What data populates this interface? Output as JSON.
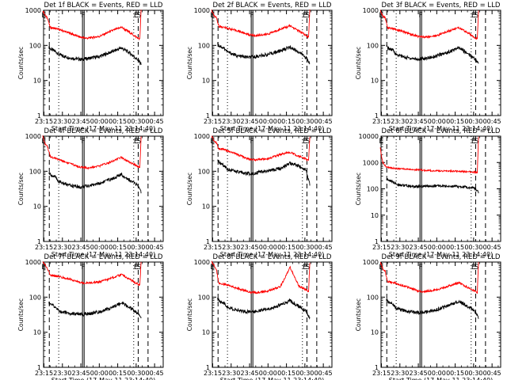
{
  "x_ticks": [
    "23:15",
    "23:30",
    "23:45",
    "00:00",
    "00:15",
    "00:30",
    "00:45"
  ],
  "y_ticks": [
    "1",
    "10",
    "100",
    "1000"
  ],
  "xlabel": "Start Time (17-May-11 23:14:40)",
  "ylabel": "Counts/sec",
  "series_colors": {
    "events": "#000000",
    "lld": "#ff0000"
  },
  "marker_labels": {
    "flare_left": "F",
    "eclipse_left": "E",
    "saa_left": "S",
    "eclipse_right": "E",
    "saa_right": "S"
  },
  "chart_data": [
    {
      "type": "line",
      "title": "Det 1f BLACK = Events, RED = LLD",
      "xlabel": "Start Time (17-May-11 23:14:40)",
      "ylabel": "Counts/sec",
      "x_range": [
        "23:14:40",
        "00:52:00"
      ],
      "ylim": [
        1,
        1000
      ],
      "y_scale": "log",
      "series": [
        {
          "color": "#000000",
          "x": [
            "23:19",
            "23:20",
            "23:25",
            "23:27",
            "23:35",
            "23:45",
            "23:50",
            "00:00",
            "00:10",
            "00:18",
            "00:25",
            "00:31",
            "00:34"
          ],
          "values": [
            90,
            80,
            65,
            55,
            45,
            40,
            42,
            48,
            65,
            85,
            60,
            40,
            30
          ]
        },
        {
          "color": "#ff0000",
          "x": [
            "23:14",
            "23:16",
            "23:18",
            "23:20",
            "23:25",
            "23:35",
            "23:45",
            "23:50",
            "00:00",
            "00:10",
            "00:18",
            "00:25",
            "00:31",
            "00:33",
            "00:34"
          ],
          "values": [
            1000,
            700,
            600,
            320,
            300,
            230,
            170,
            160,
            180,
            260,
            330,
            230,
            165,
            150,
            1000
          ]
        }
      ]
    },
    {
      "type": "line",
      "title": "Det 2f BLACK = Events, RED = LLD",
      "xlabel": "Start Time (17-May-11 23:14:40)",
      "ylabel": "Counts/sec",
      "x_range": [
        "23:14:40",
        "00:52:00"
      ],
      "ylim": [
        1,
        1000
      ],
      "y_scale": "log",
      "series": [
        {
          "color": "#000000",
          "x": [
            "23:19",
            "23:20",
            "23:25",
            "23:27",
            "23:35",
            "23:45",
            "23:50",
            "00:00",
            "00:10",
            "00:18",
            "00:25",
            "00:31",
            "00:34"
          ],
          "values": [
            110,
            100,
            80,
            65,
            50,
            45,
            48,
            55,
            70,
            90,
            65,
            45,
            30
          ]
        },
        {
          "color": "#ff0000",
          "x": [
            "23:14",
            "23:16",
            "23:18",
            "23:20",
            "23:25",
            "23:35",
            "23:45",
            "23:50",
            "00:00",
            "00:10",
            "00:18",
            "00:25",
            "00:31",
            "00:33",
            "00:34"
          ],
          "values": [
            1000,
            700,
            600,
            350,
            320,
            260,
            200,
            190,
            210,
            290,
            360,
            260,
            190,
            170,
            1000
          ]
        }
      ]
    },
    {
      "type": "line",
      "title": "Det 3f BLACK = Events, RED = LLD",
      "xlabel": "Start Time (17-May-11 23:14:40)",
      "ylabel": "Counts/sec",
      "x_range": [
        "23:14:40",
        "00:52:00"
      ],
      "ylim": [
        1,
        1000
      ],
      "y_scale": "log",
      "series": [
        {
          "color": "#000000",
          "x": [
            "23:19",
            "23:20",
            "23:25",
            "23:27",
            "23:35",
            "23:45",
            "23:50",
            "00:00",
            "00:10",
            "00:18",
            "00:25",
            "00:31",
            "00:34"
          ],
          "values": [
            95,
            85,
            70,
            55,
            45,
            40,
            42,
            50,
            65,
            85,
            60,
            42,
            30
          ]
        },
        {
          "color": "#ff0000",
          "x": [
            "23:14",
            "23:16",
            "23:18",
            "23:20",
            "23:25",
            "23:35",
            "23:45",
            "23:50",
            "00:00",
            "00:10",
            "00:18",
            "00:25",
            "00:31",
            "00:33",
            "00:34"
          ],
          "values": [
            1000,
            700,
            600,
            320,
            300,
            230,
            180,
            170,
            190,
            260,
            320,
            230,
            170,
            150,
            1000
          ]
        }
      ]
    },
    {
      "type": "line",
      "title": "Det 4f BLACK = Events, RED = LLD",
      "xlabel": "Start Time (17-May-11 23:14:40)",
      "ylabel": "Counts/sec",
      "x_range": [
        "23:14:40",
        "00:52:00"
      ],
      "ylim": [
        1,
        1000
      ],
      "y_scale": "log",
      "series": [
        {
          "color": "#000000",
          "x": [
            "23:19",
            "23:20",
            "23:25",
            "23:27",
            "23:35",
            "23:45",
            "23:50",
            "00:00",
            "00:10",
            "00:18",
            "00:25",
            "00:31",
            "00:34"
          ],
          "values": [
            90,
            80,
            65,
            50,
            40,
            35,
            38,
            45,
            60,
            80,
            55,
            40,
            25
          ]
        },
        {
          "color": "#ff0000",
          "x": [
            "23:14",
            "23:16",
            "23:18",
            "23:20",
            "23:25",
            "23:35",
            "23:45",
            "23:50",
            "00:00",
            "00:10",
            "00:18",
            "00:25",
            "00:31",
            "00:33",
            "00:34"
          ],
          "values": [
            1000,
            600,
            500,
            260,
            230,
            170,
            130,
            125,
            140,
            190,
            250,
            180,
            140,
            130,
            1000
          ]
        }
      ]
    },
    {
      "type": "line",
      "title": "Det 5f BLACK = Events, RED = LLD",
      "xlabel": "Start Time (17-May-11 23:14:40)",
      "ylabel": "Counts/sec",
      "x_range": [
        "23:14:40",
        "00:52:00"
      ],
      "ylim": [
        1,
        1000
      ],
      "y_scale": "log",
      "series": [
        {
          "color": "#000000",
          "x": [
            "23:19",
            "23:20",
            "23:25",
            "23:27",
            "23:35",
            "23:45",
            "23:50",
            "00:00",
            "00:10",
            "00:18",
            "00:25",
            "00:31",
            "00:34"
          ],
          "values": [
            200,
            180,
            140,
            115,
            95,
            85,
            90,
            100,
            120,
            170,
            140,
            110,
            40
          ]
        },
        {
          "color": "#ff0000",
          "x": [
            "23:14",
            "23:16",
            "23:18",
            "23:20",
            "23:25",
            "23:35",
            "23:45",
            "23:50",
            "00:00",
            "00:10",
            "00:18",
            "00:25",
            "00:31",
            "00:33",
            "00:34"
          ],
          "values": [
            1000,
            750,
            650,
            450,
            400,
            300,
            220,
            210,
            230,
            300,
            350,
            270,
            220,
            200,
            1000
          ]
        }
      ]
    },
    {
      "type": "line",
      "title": "Det 6f BLACK = Events, RED = LLD",
      "xlabel": "Start Time (17-May-11 23:14:40)",
      "ylabel": "Counts/sec",
      "x_range": [
        "23:14:40",
        "00:52:00"
      ],
      "ylim": [
        1,
        10000
      ],
      "y_scale": "log",
      "series": [
        {
          "color": "#000000",
          "x": [
            "23:19",
            "23:20",
            "23:25",
            "23:27",
            "23:35",
            "23:45",
            "23:50",
            "00:00",
            "00:10",
            "00:18",
            "00:25",
            "00:31",
            "00:34"
          ],
          "values": [
            250,
            220,
            180,
            150,
            130,
            120,
            125,
            130,
            125,
            120,
            115,
            105,
            75
          ]
        },
        {
          "color": "#ff0000",
          "x": [
            "23:14",
            "23:16",
            "23:18",
            "23:20",
            "23:25",
            "23:35",
            "23:45",
            "23:50",
            "00:00",
            "00:10",
            "00:18",
            "00:25",
            "00:31",
            "00:33",
            "00:34"
          ],
          "values": [
            3500,
            1000,
            750,
            650,
            600,
            560,
            520,
            500,
            480,
            470,
            460,
            450,
            430,
            420,
            10000
          ]
        }
      ]
    },
    {
      "type": "line",
      "title": "Det 7f BLACK = Events, RED = LLD",
      "xlabel": "Start Time (17-May-11 23:14:40)",
      "ylabel": "Counts/sec",
      "x_range": [
        "23:14:40",
        "00:52:00"
      ],
      "ylim": [
        1,
        1000
      ],
      "y_scale": "log",
      "series": [
        {
          "color": "#000000",
          "x": [
            "23:19",
            "23:20",
            "23:25",
            "23:27",
            "23:35",
            "23:45",
            "23:50",
            "00:00",
            "00:10",
            "00:18",
            "00:25",
            "00:31",
            "00:34"
          ],
          "values": [
            70,
            65,
            50,
            40,
            35,
            32,
            33,
            38,
            50,
            70,
            50,
            35,
            25
          ]
        },
        {
          "color": "#ff0000",
          "x": [
            "23:14",
            "23:16",
            "23:18",
            "23:20",
            "23:25",
            "23:35",
            "23:45",
            "23:50",
            "00:00",
            "00:10",
            "00:18",
            "00:25",
            "00:31",
            "00:33",
            "00:34"
          ],
          "values": [
            1000,
            800,
            650,
            420,
            400,
            330,
            260,
            250,
            270,
            350,
            440,
            320,
            240,
            210,
            1000
          ]
        }
      ]
    },
    {
      "type": "line",
      "title": "Det 8f BLACK = Events, RED = LLD",
      "xlabel": "Start Time (17-May-11 23:14:40)",
      "ylabel": "Counts/sec",
      "x_range": [
        "23:14:40",
        "00:52:00"
      ],
      "ylim": [
        1,
        1000
      ],
      "y_scale": "log",
      "series": [
        {
          "color": "#000000",
          "x": [
            "23:19",
            "23:20",
            "23:25",
            "23:27",
            "23:35",
            "23:45",
            "23:50",
            "00:00",
            "00:10",
            "00:18",
            "00:25",
            "00:31",
            "00:34"
          ],
          "values": [
            90,
            80,
            65,
            52,
            42,
            38,
            40,
            45,
            60,
            80,
            55,
            40,
            25
          ]
        },
        {
          "color": "#ff0000",
          "x": [
            "23:14",
            "23:16",
            "23:18",
            "23:20",
            "23:25",
            "23:35",
            "23:45",
            "23:50",
            "00:00",
            "00:10",
            "00:18",
            "00:25",
            "00:31",
            "00:33",
            "00:34"
          ],
          "values": [
            1000,
            800,
            600,
            250,
            230,
            180,
            140,
            135,
            150,
            200,
            700,
            210,
            160,
            140,
            1000
          ]
        }
      ]
    },
    {
      "type": "line",
      "title": "Det 9f BLACK = Events, RED = LLD",
      "xlabel": "Start Time (17-May-11 23:14:40)",
      "ylabel": "Counts/sec",
      "x_range": [
        "23:14:40",
        "00:52:00"
      ],
      "ylim": [
        1,
        1000
      ],
      "y_scale": "log",
      "series": [
        {
          "color": "#000000",
          "x": [
            "23:19",
            "23:20",
            "23:25",
            "23:27",
            "23:35",
            "23:45",
            "23:50",
            "00:00",
            "00:10",
            "00:18",
            "00:25",
            "00:31",
            "00:34"
          ],
          "values": [
            85,
            75,
            60,
            48,
            40,
            36,
            38,
            44,
            58,
            78,
            55,
            40,
            25
          ]
        },
        {
          "color": "#ff0000",
          "x": [
            "23:14",
            "23:16",
            "23:18",
            "23:20",
            "23:25",
            "23:35",
            "23:45",
            "23:50",
            "00:00",
            "00:10",
            "00:18",
            "00:25",
            "00:31",
            "00:33",
            "00:34"
          ],
          "values": [
            1000,
            650,
            550,
            280,
            260,
            200,
            150,
            145,
            160,
            210,
            260,
            190,
            150,
            135,
            1000
          ]
        }
      ]
    }
  ]
}
